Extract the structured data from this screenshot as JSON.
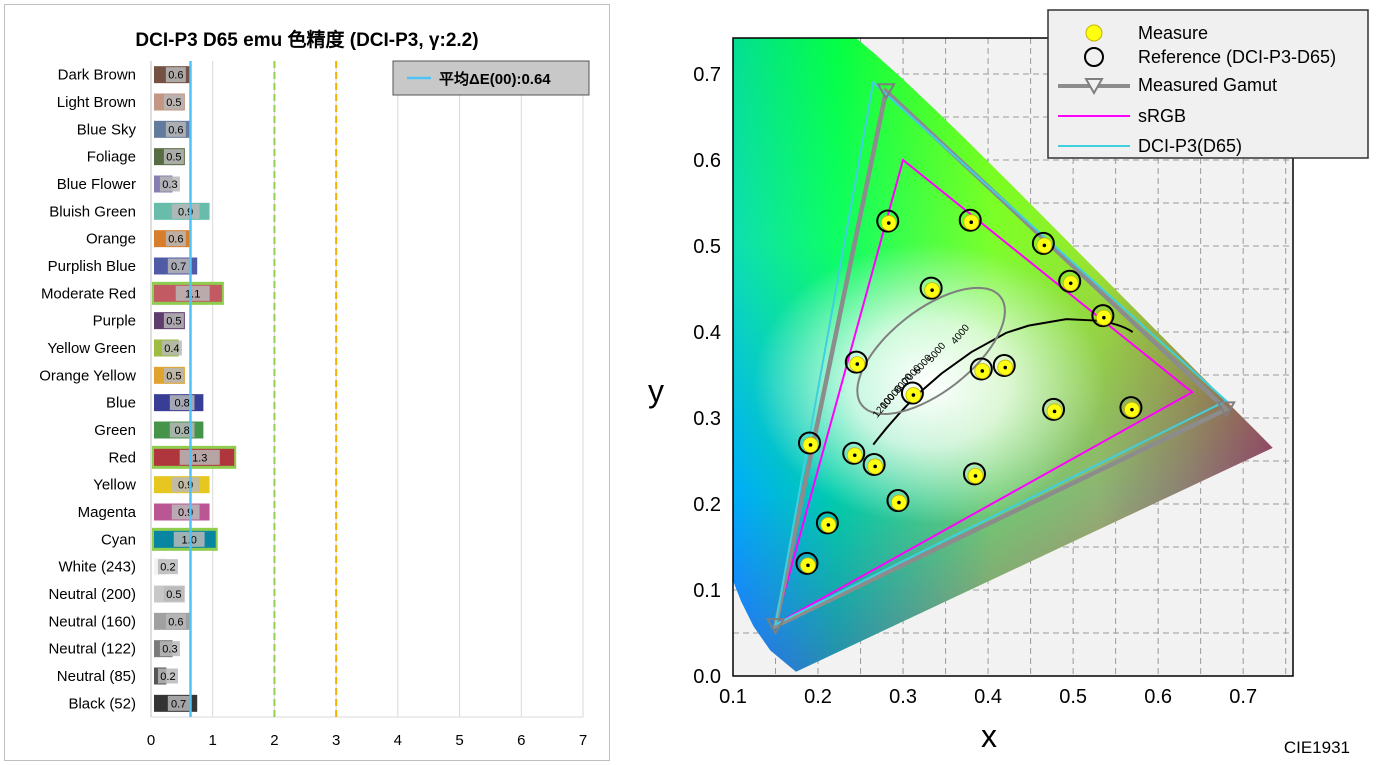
{
  "chart_data": [
    {
      "type": "bar",
      "title": "DCI-P3 D65 emu 色精度 (DCI-P3, γ:2.2)",
      "legend": {
        "label": "平均ΔE(00):0.64",
        "position": "top-right"
      },
      "average": 0.64,
      "xlim": [
        0,
        7
      ],
      "xticks": [
        "0",
        "1",
        "2",
        "3",
        "4",
        "5",
        "6",
        "7"
      ],
      "reference_lines": [
        2,
        3
      ],
      "grid": true,
      "bars": [
        {
          "label": "Dark Brown",
          "value": 0.6,
          "value_label": "0.6",
          "color": "#735244",
          "highlight": false
        },
        {
          "label": "Light Brown",
          "value": 0.5,
          "value_label": "0.5",
          "color": "#c29682",
          "highlight": false
        },
        {
          "label": "Blue Sky",
          "value": 0.6,
          "value_label": "0.6",
          "color": "#627a9d",
          "highlight": false
        },
        {
          "label": "Foliage",
          "value": 0.5,
          "value_label": "0.5",
          "color": "#576c43",
          "highlight": false
        },
        {
          "label": "Blue Flower",
          "value": 0.3,
          "value_label": "0.3",
          "color": "#8580b1",
          "highlight": false
        },
        {
          "label": "Bluish Green",
          "value": 0.9,
          "value_label": "0.9",
          "color": "#67bdaa",
          "highlight": false
        },
        {
          "label": "Orange",
          "value": 0.6,
          "value_label": "0.6",
          "color": "#d67e2c",
          "highlight": false
        },
        {
          "label": "Purplish Blue",
          "value": 0.7,
          "value_label": "0.7",
          "color": "#505ba6",
          "highlight": false
        },
        {
          "label": "Moderate Red",
          "value": 1.1,
          "value_label": "1.1",
          "color": "#c15a63",
          "highlight": true
        },
        {
          "label": "Purple",
          "value": 0.5,
          "value_label": "0.5",
          "color": "#5e3c6c",
          "highlight": false
        },
        {
          "label": "Yellow Green",
          "value": 0.4,
          "value_label": "0.4",
          "color": "#9dbc40",
          "highlight": false
        },
        {
          "label": "Orange Yellow",
          "value": 0.5,
          "value_label": "0.5",
          "color": "#e0a32e",
          "highlight": false
        },
        {
          "label": "Blue",
          "value": 0.8,
          "value_label": "0.8",
          "color": "#383d96",
          "highlight": false
        },
        {
          "label": "Green",
          "value": 0.8,
          "value_label": "0.8",
          "color": "#469449",
          "highlight": false
        },
        {
          "label": "Red",
          "value": 1.3,
          "value_label": "1.3",
          "color": "#af363c",
          "highlight": true
        },
        {
          "label": "Yellow",
          "value": 0.9,
          "value_label": "0.9",
          "color": "#e7c71f",
          "highlight": false
        },
        {
          "label": "Magenta",
          "value": 0.9,
          "value_label": "0.9",
          "color": "#bb5695",
          "highlight": false
        },
        {
          "label": "Cyan",
          "value": 1.0,
          "value_label": "1.0",
          "color": "#0885a1",
          "highlight": true
        },
        {
          "label": "White (243)",
          "value": 0.2,
          "value_label": "0.2",
          "color": "#f3f3f2",
          "highlight": false
        },
        {
          "label": "Neutral (200)",
          "value": 0.5,
          "value_label": "0.5",
          "color": "#c8c8c8",
          "highlight": false
        },
        {
          "label": "Neutral (160)",
          "value": 0.6,
          "value_label": "0.6",
          "color": "#a0a0a0",
          "highlight": false
        },
        {
          "label": "Neutral (122)",
          "value": 0.3,
          "value_label": "0.3",
          "color": "#7a7a79",
          "highlight": false
        },
        {
          "label": "Neutral (85)",
          "value": 0.2,
          "value_label": "0.2",
          "color": "#555555",
          "highlight": false
        },
        {
          "label": "Black (52)",
          "value": 0.7,
          "value_label": "0.7",
          "color": "#343434",
          "highlight": false
        }
      ]
    },
    {
      "type": "scatter",
      "title": "",
      "xlabel": "x",
      "ylabel": "y",
      "xlim": [
        0.1,
        0.75
      ],
      "ylim": [
        0.0,
        0.75
      ],
      "xticks": [
        "0.1",
        "0.2",
        "0.3",
        "0.4",
        "0.5",
        "0.6",
        "0.7"
      ],
      "yticks": [
        "0.0",
        "0.1",
        "0.2",
        "0.3",
        "0.4",
        "0.5",
        "0.6",
        "0.7"
      ],
      "grid": true,
      "corner_label": "CIE1931",
      "legend": {
        "position": "top-right",
        "items": [
          "Measure",
          "Reference (DCI-P3-D65)",
          "Measured Gamut",
          "sRGB",
          "DCI-P3(D65)"
        ]
      },
      "cct_labels": [
        "4000",
        "5000",
        "6000",
        "7000",
        "8000",
        "10000",
        "12000"
      ],
      "gamut_srgb": [
        [
          0.64,
          0.33
        ],
        [
          0.3,
          0.6
        ],
        [
          0.15,
          0.06
        ]
      ],
      "gamut_dcip3": [
        [
          0.68,
          0.32
        ],
        [
          0.265,
          0.69
        ],
        [
          0.15,
          0.06
        ]
      ],
      "gamut_measured": [
        [
          0.68,
          0.31
        ],
        [
          0.28,
          0.68
        ],
        [
          0.15,
          0.058
        ]
      ],
      "points": [
        {
          "x": 0.282,
          "y": 0.529
        },
        {
          "x": 0.379,
          "y": 0.53
        },
        {
          "x": 0.465,
          "y": 0.503
        },
        {
          "x": 0.496,
          "y": 0.459
        },
        {
          "x": 0.535,
          "y": 0.419
        },
        {
          "x": 0.333,
          "y": 0.451
        },
        {
          "x": 0.245,
          "y": 0.365
        },
        {
          "x": 0.311,
          "y": 0.329
        },
        {
          "x": 0.392,
          "y": 0.357
        },
        {
          "x": 0.419,
          "y": 0.361
        },
        {
          "x": 0.19,
          "y": 0.271
        },
        {
          "x": 0.477,
          "y": 0.31
        },
        {
          "x": 0.568,
          "y": 0.312
        },
        {
          "x": 0.242,
          "y": 0.259
        },
        {
          "x": 0.266,
          "y": 0.246
        },
        {
          "x": 0.384,
          "y": 0.235
        },
        {
          "x": 0.294,
          "y": 0.204
        },
        {
          "x": 0.211,
          "y": 0.178
        },
        {
          "x": 0.187,
          "y": 0.131
        }
      ]
    }
  ]
}
